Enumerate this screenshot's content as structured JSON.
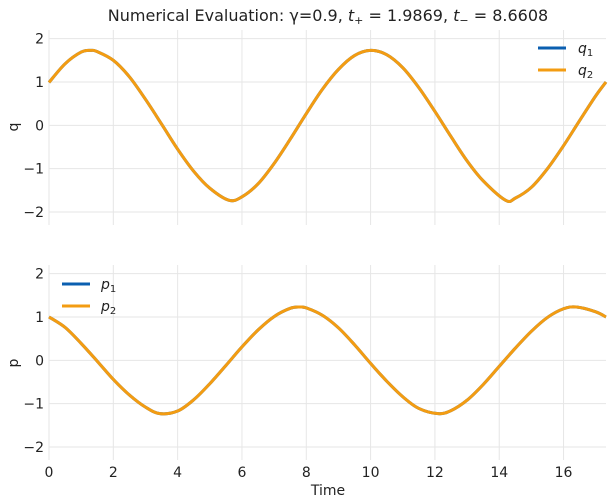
{
  "chart_data": [
    {
      "type": "line",
      "title_prefix": "Numerical Evaluation: γ=0.9, ",
      "title_tplus_label": "t",
      "title_tplus_sub": "+",
      "title_tplus_value": " = 1.9869, ",
      "title_tminus_label": "t",
      "title_tminus_sub": "−",
      "title_tminus_value": " = 8.6608",
      "ylabel": "q",
      "xlabel": "",
      "xlim": [
        0,
        17.32
      ],
      "ylim": [
        -2.3,
        2.2
      ],
      "yticks": [
        "−2",
        "−1",
        "0",
        "1",
        "2"
      ],
      "xticks": [
        "0",
        "2",
        "4",
        "6",
        "8",
        "10",
        "12",
        "14",
        "16"
      ],
      "grid": true,
      "legend_position": "top-right",
      "series": [
        {
          "name_base": "q",
          "name_sub": "1",
          "color": "#0b5fb0",
          "x": [
            0,
            0.5,
            1,
            1.3,
            1.5,
            2,
            2.5,
            3,
            3.5,
            4,
            4.5,
            5,
            5.6,
            6,
            6.5,
            7,
            7.5,
            8,
            8.5,
            9,
            9.5,
            10,
            10.5,
            11,
            11.5,
            12,
            12.5,
            13,
            13.5,
            14.2,
            14.5,
            15,
            15.5,
            16,
            16.5,
            17,
            17.32
          ],
          "y": [
            0.99,
            1.42,
            1.69,
            1.73,
            1.7,
            1.5,
            1.12,
            0.6,
            0.03,
            -0.55,
            -1.06,
            -1.45,
            -1.73,
            -1.65,
            -1.35,
            -0.88,
            -0.32,
            0.27,
            0.83,
            1.29,
            1.61,
            1.73,
            1.63,
            1.33,
            0.87,
            0.32,
            -0.26,
            -0.82,
            -1.28,
            -1.73,
            -1.68,
            -1.43,
            -1.0,
            -0.47,
            0.11,
            0.68,
            1.0
          ]
        },
        {
          "name_base": "q",
          "name_sub": "2",
          "color": "#f39c12",
          "x": [
            0,
            0.5,
            1,
            1.3,
            1.5,
            2,
            2.5,
            3,
            3.5,
            4,
            4.5,
            5,
            5.6,
            6,
            6.5,
            7,
            7.5,
            8,
            8.5,
            9,
            9.5,
            10,
            10.5,
            11,
            11.5,
            12,
            12.5,
            13,
            13.5,
            14.2,
            14.5,
            15,
            15.5,
            16,
            16.5,
            17,
            17.32
          ],
          "y": [
            0.99,
            1.42,
            1.69,
            1.73,
            1.7,
            1.5,
            1.12,
            0.6,
            0.03,
            -0.55,
            -1.06,
            -1.45,
            -1.73,
            -1.65,
            -1.35,
            -0.88,
            -0.32,
            0.27,
            0.83,
            1.29,
            1.61,
            1.73,
            1.63,
            1.33,
            0.87,
            0.32,
            -0.26,
            -0.82,
            -1.28,
            -1.73,
            -1.68,
            -1.43,
            -1.0,
            -0.47,
            0.11,
            0.68,
            1.0
          ]
        }
      ]
    },
    {
      "type": "line",
      "ylabel": "p",
      "xlabel": "Time",
      "xlim": [
        0,
        17.32
      ],
      "ylim": [
        -2.3,
        2.2
      ],
      "yticks": [
        "−2",
        "−1",
        "0",
        "1",
        "2"
      ],
      "xticks": [
        "0",
        "2",
        "4",
        "6",
        "8",
        "10",
        "12",
        "14",
        "16"
      ],
      "grid": true,
      "legend_position": "top-left",
      "series": [
        {
          "name_base": "p",
          "name_sub": "1",
          "color": "#0b5fb0",
          "x": [
            0,
            0.5,
            1,
            1.5,
            2,
            2.5,
            3,
            3.45,
            4,
            4.5,
            5,
            5.5,
            6,
            6.5,
            7,
            7.5,
            7.8,
            8,
            8.5,
            9,
            9.5,
            10,
            10.5,
            11,
            11.5,
            12.1,
            12.5,
            13,
            13.5,
            14,
            14.5,
            15,
            15.5,
            16,
            16.4,
            17,
            17.32
          ],
          "y": [
            1.0,
            0.76,
            0.39,
            -0.02,
            -0.44,
            -0.8,
            -1.08,
            -1.23,
            -1.17,
            -0.91,
            -0.54,
            -0.12,
            0.31,
            0.7,
            1.01,
            1.2,
            1.23,
            1.21,
            1.04,
            0.75,
            0.36,
            -0.07,
            -0.48,
            -0.84,
            -1.11,
            -1.23,
            -1.16,
            -0.92,
            -0.56,
            -0.14,
            0.28,
            0.67,
            0.99,
            1.19,
            1.23,
            1.12,
            1.0
          ]
        },
        {
          "name_base": "p",
          "name_sub": "2",
          "color": "#f39c12",
          "x": [
            0,
            0.5,
            1,
            1.5,
            2,
            2.5,
            3,
            3.45,
            4,
            4.5,
            5,
            5.5,
            6,
            6.5,
            7,
            7.5,
            7.8,
            8,
            8.5,
            9,
            9.5,
            10,
            10.5,
            11,
            11.5,
            12.1,
            12.5,
            13,
            13.5,
            14,
            14.5,
            15,
            15.5,
            16,
            16.4,
            17,
            17.32
          ],
          "y": [
            1.0,
            0.76,
            0.39,
            -0.02,
            -0.44,
            -0.8,
            -1.08,
            -1.23,
            -1.17,
            -0.91,
            -0.54,
            -0.12,
            0.31,
            0.7,
            1.01,
            1.2,
            1.23,
            1.21,
            1.04,
            0.75,
            0.36,
            -0.07,
            -0.48,
            -0.84,
            -1.11,
            -1.23,
            -1.16,
            -0.92,
            -0.56,
            -0.14,
            0.28,
            0.67,
            0.99,
            1.19,
            1.23,
            1.12,
            1.0
          ]
        }
      ]
    }
  ]
}
